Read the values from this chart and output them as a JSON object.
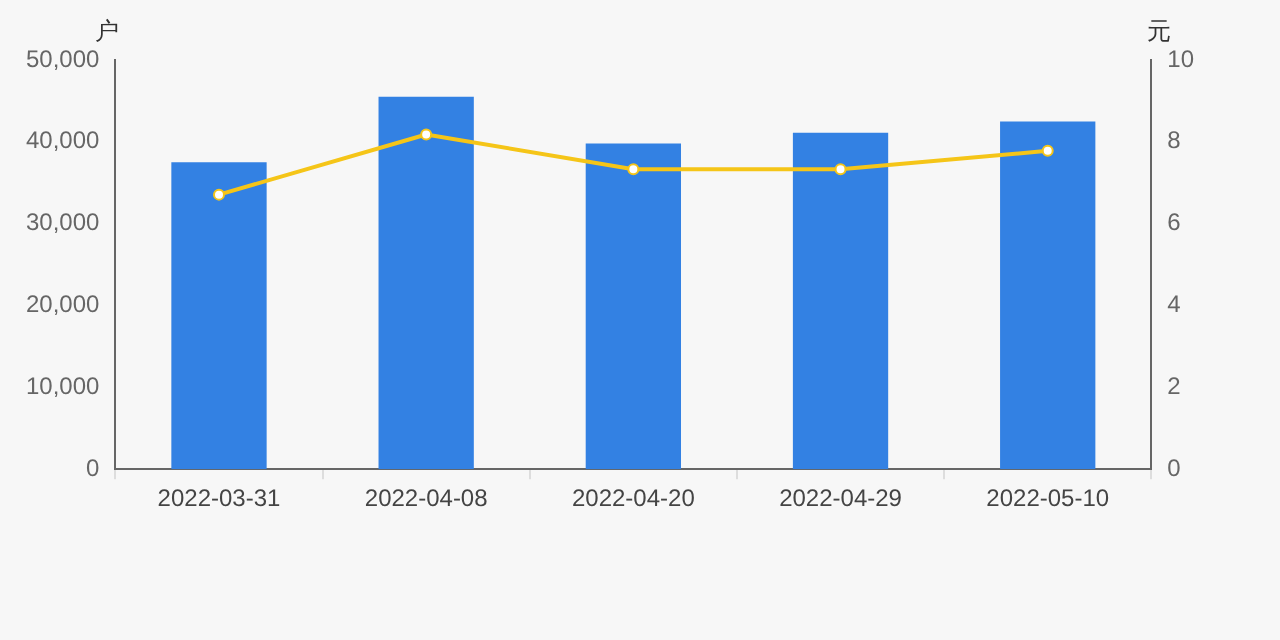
{
  "chart_data": {
    "type": "bar",
    "ylabel": "户",
    "y2label": "元",
    "categories": [
      "2022-03-31",
      "2022-04-08",
      "2022-04-20",
      "2022-04-29",
      "2022-05-10"
    ],
    "series": [
      {
        "color": "#3381e3",
        "values": [
          37500,
          45500,
          39800,
          41100,
          42500
        ]
      },
      {
        "type": "line",
        "axis": "y2",
        "color": "#f5c518",
        "marker": "circle",
        "values": [
          6.71,
          8.18,
          7.33,
          7.33,
          7.78
        ]
      }
    ],
    "ylim": [
      0,
      50000
    ],
    "yticks": [
      0,
      {
        "value": 10000,
        "label": "10,000"
      },
      {
        "value": 20000,
        "label": "20,000"
      },
      {
        "value": 30000,
        "label": "30,000"
      },
      {
        "value": 40000,
        "label": "40,000"
      },
      {
        "value": 50000,
        "label": "50,000"
      }
    ],
    "y2lim": [
      0,
      10
    ],
    "y2ticks": [
      0,
      2,
      4,
      6,
      8,
      10
    ],
    "grid": false,
    "legend": false
  }
}
